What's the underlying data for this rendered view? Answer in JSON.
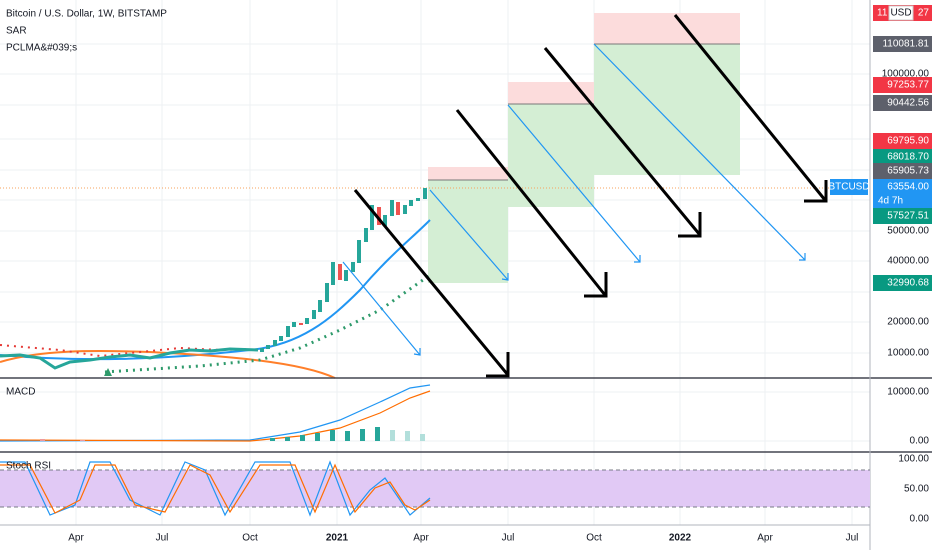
{
  "header": {
    "title": "Bitcoin / U.S. Dollar, 1W, BITSTAMP",
    "indicators": [
      "SAR",
      "PCLMA&#039;s"
    ]
  },
  "top_badge": {
    "left": "11",
    "currency": "USD",
    "right": "27"
  },
  "price_axis": {
    "levels": [
      "110081.81",
      "97253.77",
      "90442.56",
      "69795.90",
      "68018.70",
      "65905.73",
      "63554.00",
      "57527.51",
      "50000.00",
      "40000.00",
      "32990.68",
      "20000.00",
      "10000.00"
    ],
    "symbol": "BTCUSD",
    "countdown": "4d 7h",
    "partial": "100000.00"
  },
  "panes": {
    "macd": "MACD",
    "stoch": "Stoch RSI"
  },
  "macd_axis": [
    "10000.00",
    "0.00"
  ],
  "stoch_axis": [
    "100.00",
    "50.00",
    "0.00"
  ],
  "time_axis": [
    "Apr",
    "Jul",
    "Oct",
    "2021",
    "Apr",
    "Jul",
    "Oct",
    "2022",
    "Apr",
    "Jul"
  ]
}
